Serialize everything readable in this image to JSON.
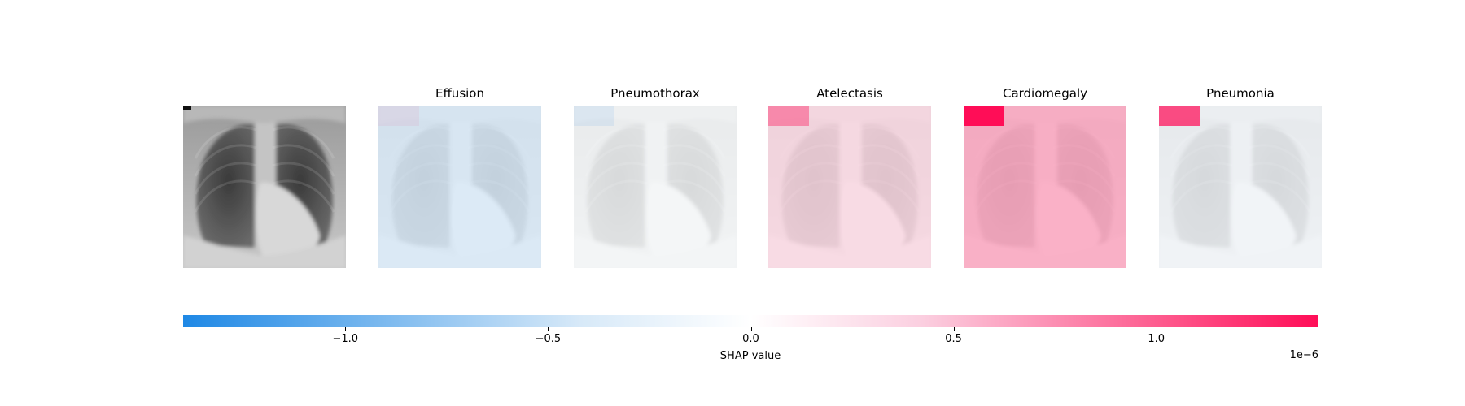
{
  "chart_data": {
    "type": "heatmap",
    "title": "",
    "panels": [
      {
        "label": "",
        "kind": "image"
      },
      {
        "label": "Effusion",
        "overlay_color": "#1e88e5",
        "overlay_opacity": 0.13,
        "patch_color": "#ff0d57",
        "patch_opacity": 0.06
      },
      {
        "label": "Pneumothorax",
        "overlay_color": "#1e88e5",
        "overlay_opacity": 0.02,
        "patch_color": "#1e88e5",
        "patch_opacity": 0.09
      },
      {
        "label": "Atelectasis",
        "overlay_color": "#ff0d57",
        "overlay_opacity": 0.12,
        "patch_color": "#ff0d57",
        "patch_opacity": 0.38
      },
      {
        "label": "Cardiomegaly",
        "overlay_color": "#ff0d57",
        "overlay_opacity": 0.3,
        "patch_color": "#ff0d57",
        "patch_opacity": 1.0
      },
      {
        "label": "Pneumonia",
        "overlay_color": "#1e88e5",
        "overlay_opacity": 0.03,
        "patch_color": "#ff0d57",
        "patch_opacity": 0.72
      }
    ],
    "colorbar": {
      "label": "SHAP value",
      "exponent_label": "1e−6",
      "range": [
        -1.4,
        1.4
      ],
      "ticks": [
        {
          "value": -1.0,
          "label": "−1.0"
        },
        {
          "value": -0.5,
          "label": "−0.5"
        },
        {
          "value": 0.0,
          "label": "0.0"
        },
        {
          "value": 0.5,
          "label": "0.5"
        },
        {
          "value": 1.0,
          "label": "1.0"
        }
      ],
      "colors": {
        "negative": "#1e88e5",
        "neutral": "#ffffff",
        "positive": "#ff0d57"
      }
    }
  }
}
